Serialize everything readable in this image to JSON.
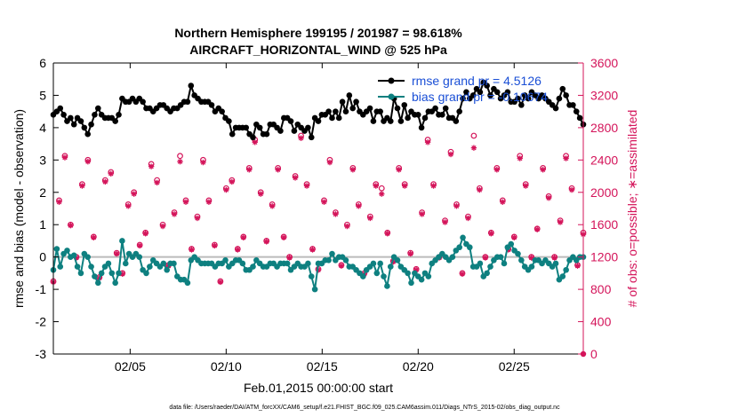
{
  "chart_data": {
    "type": "line",
    "title": "Northern Hemisphere 199195 / 201987 = 98.618%",
    "subtitle": "AIRCRAFT_HORIZONTAL_WIND @ 525 hPa",
    "xlabel": "Feb.01,2015 00:00:00 start",
    "ylabel_left": "rmse and bias (model - observation)",
    "ylabel_right": "# of obs: o=possible; ∗=assimilated",
    "footnote": "data file: /Users/raeder/DAI/ATM_forcXX/CAM6_setup/f.e21.FHIST_BGC.f09_025.CAM6assim.011/Diags_NTrS_2015-02/obs_diag_output.nc",
    "x_ticks": [
      {
        "day": 5,
        "label": "02/05"
      },
      {
        "day": 10,
        "label": "02/10"
      },
      {
        "day": 15,
        "label": "02/15"
      },
      {
        "day": 20,
        "label": "02/20"
      },
      {
        "day": 25,
        "label": "02/25"
      }
    ],
    "xlim": [
      1,
      28.6
    ],
    "ylim_left": [
      -3,
      6
    ],
    "yticks_left": [
      -3,
      -2,
      -1,
      0,
      1,
      2,
      3,
      4,
      5,
      6
    ],
    "ylim_right": [
      0,
      3600
    ],
    "yticks_right": [
      0,
      400,
      800,
      1200,
      1600,
      2000,
      2400,
      2800,
      3200,
      3600
    ],
    "legend": {
      "placement": "top-right",
      "entries": [
        "rmse grand pr = 4.5126",
        "bias grand pr = -0.10674"
      ]
    },
    "colors": {
      "rmse": "#000000",
      "bias": "#0e8080",
      "obs": "#d4145a",
      "zero": "#bbbbbb",
      "axis_right": "#d4145a",
      "legend_text": "#1a4fd6"
    },
    "rmse": [
      4.4,
      4.5,
      4.6,
      4.4,
      4.2,
      4.3,
      4.1,
      4.3,
      4.2,
      4.0,
      3.8,
      4.1,
      4.4,
      4.6,
      4.4,
      4.3,
      4.3,
      4.3,
      4.2,
      4.4,
      4.9,
      4.8,
      4.8,
      4.9,
      4.8,
      4.9,
      4.8,
      4.6,
      4.6,
      4.5,
      4.6,
      4.7,
      4.7,
      4.6,
      4.5,
      4.6,
      4.6,
      4.7,
      4.8,
      4.8,
      5.3,
      5.0,
      4.9,
      4.8,
      4.8,
      4.8,
      4.7,
      4.5,
      4.6,
      4.5,
      4.3,
      4.2,
      3.8,
      4.0,
      4.0,
      4.0,
      4.0,
      3.8,
      3.7,
      4.1,
      4.0,
      3.8,
      3.8,
      4.1,
      4.1,
      4.0,
      3.9,
      4.3,
      4.3,
      4.2,
      3.9,
      4.1,
      4.0,
      3.9,
      4.0,
      3.7,
      4.3,
      4.2,
      4.4,
      4.4,
      4.5,
      4.3,
      4.5,
      4.3,
      4.8,
      4.5,
      5.0,
      4.6,
      4.8,
      4.5,
      4.4,
      4.5,
      4.6,
      4.2,
      4.5,
      4.5,
      4.2,
      4.3,
      4.2,
      4.9,
      4.6,
      4.2,
      4.7,
      4.3,
      4.5,
      4.4,
      4.4,
      4.0,
      4.3,
      4.5,
      4.5,
      4.6,
      4.4,
      4.4,
      4.6,
      4.3,
      4.3,
      4.2,
      4.5,
      4.9,
      5.1,
      4.9,
      5.0,
      5.2,
      5.1,
      5.4,
      5.3,
      5.0,
      5.2,
      5.1,
      4.9,
      5.0,
      5.1,
      4.8,
      4.8,
      4.9,
      4.7,
      5.0,
      4.9,
      5.1,
      5.0,
      4.9,
      5.0,
      4.9,
      4.8,
      4.7,
      4.6,
      4.9,
      5.2,
      5.0,
      4.7,
      4.7,
      4.5,
      4.3,
      4.1
    ],
    "bias": [
      -0.4,
      0.25,
      -0.3,
      0.1,
      0.2,
      0.0,
      0.05,
      -0.3,
      -0.5,
      0.1,
      0.0,
      -0.3,
      -0.6,
      -0.8,
      -0.5,
      -0.3,
      -0.2,
      -0.5,
      -0.8,
      -0.5,
      0.5,
      -0.2,
      0.1,
      0.0,
      0.1,
      0.0,
      -0.4,
      -0.5,
      -0.3,
      -0.1,
      -0.2,
      -0.3,
      -0.2,
      -0.4,
      -0.2,
      -0.2,
      -0.6,
      -0.7,
      -0.7,
      -0.8,
      -0.1,
      0.0,
      -0.1,
      -0.2,
      -0.2,
      -0.2,
      -0.2,
      -0.3,
      -0.2,
      -0.2,
      -0.1,
      -0.3,
      -0.2,
      -0.1,
      -0.1,
      -0.2,
      -0.4,
      -0.4,
      -0.3,
      -0.1,
      -0.2,
      -0.3,
      -0.3,
      -0.2,
      -0.2,
      -0.3,
      -0.2,
      -0.2,
      -0.2,
      -0.4,
      -0.3,
      -0.2,
      -0.3,
      -0.3,
      -0.2,
      -0.6,
      -1.0,
      -0.2,
      -0.2,
      -0.1,
      -0.1,
      0.1,
      -0.1,
      0.0,
      0.0,
      -0.1,
      -0.3,
      -0.3,
      -0.4,
      -0.5,
      -0.6,
      -0.4,
      -0.3,
      -0.2,
      -0.5,
      -0.2,
      -0.6,
      -0.9,
      -0.3,
      0.0,
      -0.1,
      -0.3,
      -0.4,
      -0.5,
      -0.8,
      -0.5,
      -0.6,
      -0.7,
      -0.5,
      -0.6,
      -0.2,
      -0.1,
      0.0,
      0.1,
      0.0,
      -0.1,
      0.0,
      0.2,
      0.3,
      0.6,
      0.4,
      0.3,
      -0.3,
      -0.3,
      -0.2,
      -0.6,
      -0.5,
      -0.3,
      -0.1,
      0.0,
      0.0,
      -0.2,
      0.3,
      0.4,
      0.2,
      0.1,
      -0.1,
      -0.3,
      -0.4,
      -0.3,
      -0.1,
      -0.1,
      -0.2,
      -0.1,
      -0.2,
      -0.3,
      -0.2,
      -0.7,
      -0.6,
      -0.4,
      -0.1,
      0.0,
      -0.1,
      0.0,
      0.0
    ],
    "obs_possible": [
      {
        "day": 1.0,
        "n": 900
      },
      {
        "day": 1.3,
        "n": 1900
      },
      {
        "day": 1.6,
        "n": 2450
      },
      {
        "day": 1.9,
        "n": 1600
      },
      {
        "day": 2.2,
        "n": 1200
      },
      {
        "day": 2.5,
        "n": 2100
      },
      {
        "day": 2.8,
        "n": 2400
      },
      {
        "day": 3.1,
        "n": 1450
      },
      {
        "day": 3.4,
        "n": 950
      },
      {
        "day": 3.7,
        "n": 2150
      },
      {
        "day": 4.0,
        "n": 2250
      },
      {
        "day": 4.3,
        "n": 1250
      },
      {
        "day": 4.6,
        "n": 1000
      },
      {
        "day": 4.9,
        "n": 1850
      },
      {
        "day": 5.2,
        "n": 2000
      },
      {
        "day": 5.5,
        "n": 1350
      },
      {
        "day": 5.8,
        "n": 1500
      },
      {
        "day": 6.1,
        "n": 2350
      },
      {
        "day": 6.4,
        "n": 2150
      },
      {
        "day": 6.7,
        "n": 1600
      },
      {
        "day": 7.0,
        "n": 1100
      },
      {
        "day": 7.3,
        "n": 1750
      },
      {
        "day": 7.6,
        "n": 2450
      },
      {
        "day": 7.9,
        "n": 1900
      },
      {
        "day": 8.2,
        "n": 1300
      },
      {
        "day": 8.5,
        "n": 1700
      },
      {
        "day": 8.8,
        "n": 2400
      },
      {
        "day": 9.1,
        "n": 1900
      },
      {
        "day": 9.4,
        "n": 1350
      },
      {
        "day": 9.7,
        "n": 900
      },
      {
        "day": 10.0,
        "n": 2050
      },
      {
        "day": 10.3,
        "n": 2150
      },
      {
        "day": 10.6,
        "n": 1300
      },
      {
        "day": 10.9,
        "n": 1450
      },
      {
        "day": 11.2,
        "n": 2300
      },
      {
        "day": 11.5,
        "n": 2650
      },
      {
        "day": 11.8,
        "n": 2000
      },
      {
        "day": 12.1,
        "n": 1400
      },
      {
        "day": 12.4,
        "n": 1850
      },
      {
        "day": 12.7,
        "n": 2300
      },
      {
        "day": 13.0,
        "n": 1450
      },
      {
        "day": 13.3,
        "n": 1200
      },
      {
        "day": 13.6,
        "n": 2200
      },
      {
        "day": 13.9,
        "n": 2700
      },
      {
        "day": 14.2,
        "n": 2100
      },
      {
        "day": 14.5,
        "n": 1300
      },
      {
        "day": 14.8,
        "n": 1050
      },
      {
        "day": 15.1,
        "n": 1900
      },
      {
        "day": 15.4,
        "n": 2400
      },
      {
        "day": 15.7,
        "n": 1750
      },
      {
        "day": 16.0,
        "n": 1100
      },
      {
        "day": 16.3,
        "n": 1600
      },
      {
        "day": 16.6,
        "n": 2300
      },
      {
        "day": 16.9,
        "n": 1850
      },
      {
        "day": 17.2,
        "n": 1000
      },
      {
        "day": 17.5,
        "n": 1700
      },
      {
        "day": 17.8,
        "n": 2100
      },
      {
        "day": 18.1,
        "n": 2050
      },
      {
        "day": 18.4,
        "n": 1500
      },
      {
        "day": 18.7,
        "n": 1150
      },
      {
        "day": 19.0,
        "n": 2300
      },
      {
        "day": 19.3,
        "n": 2100
      },
      {
        "day": 19.6,
        "n": 1250
      },
      {
        "day": 19.9,
        "n": 1050
      },
      {
        "day": 20.2,
        "n": 1750
      },
      {
        "day": 20.5,
        "n": 2650
      },
      {
        "day": 20.8,
        "n": 2100
      },
      {
        "day": 21.1,
        "n": 1200
      },
      {
        "day": 21.4,
        "n": 1650
      },
      {
        "day": 21.7,
        "n": 2500
      },
      {
        "day": 22.0,
        "n": 1850
      },
      {
        "day": 22.3,
        "n": 1000
      },
      {
        "day": 22.6,
        "n": 1700
      },
      {
        "day": 22.9,
        "n": 2700
      },
      {
        "day": 23.2,
        "n": 2050
      },
      {
        "day": 23.5,
        "n": 1200
      },
      {
        "day": 23.8,
        "n": 1500
      },
      {
        "day": 24.1,
        "n": 2300
      },
      {
        "day": 24.4,
        "n": 1900
      },
      {
        "day": 24.7,
        "n": 1300
      },
      {
        "day": 25.0,
        "n": 1450
      },
      {
        "day": 25.3,
        "n": 2450
      },
      {
        "day": 25.6,
        "n": 2100
      },
      {
        "day": 25.9,
        "n": 1200
      },
      {
        "day": 26.2,
        "n": 1550
      },
      {
        "day": 26.5,
        "n": 2300
      },
      {
        "day": 26.8,
        "n": 1950
      },
      {
        "day": 27.1,
        "n": 1200
      },
      {
        "day": 27.4,
        "n": 1650
      },
      {
        "day": 27.7,
        "n": 2450
      },
      {
        "day": 28.0,
        "n": 2050
      },
      {
        "day": 28.3,
        "n": 1100
      },
      {
        "day": 28.6,
        "n": 1500
      }
    ],
    "obs_assimilated": [
      {
        "day": 1.0,
        "n": 890
      },
      {
        "day": 1.3,
        "n": 1880
      },
      {
        "day": 1.6,
        "n": 2430
      },
      {
        "day": 1.9,
        "n": 1590
      },
      {
        "day": 2.2,
        "n": 1190
      },
      {
        "day": 2.5,
        "n": 2080
      },
      {
        "day": 2.8,
        "n": 2380
      },
      {
        "day": 3.1,
        "n": 1440
      },
      {
        "day": 3.4,
        "n": 940
      },
      {
        "day": 3.7,
        "n": 2130
      },
      {
        "day": 4.0,
        "n": 2230
      },
      {
        "day": 4.3,
        "n": 1240
      },
      {
        "day": 4.6,
        "n": 990
      },
      {
        "day": 4.9,
        "n": 1830
      },
      {
        "day": 5.2,
        "n": 1980
      },
      {
        "day": 5.5,
        "n": 1340
      },
      {
        "day": 5.8,
        "n": 1490
      },
      {
        "day": 6.1,
        "n": 2320
      },
      {
        "day": 6.4,
        "n": 2120
      },
      {
        "day": 6.7,
        "n": 1580
      },
      {
        "day": 7.0,
        "n": 1090
      },
      {
        "day": 7.3,
        "n": 1730
      },
      {
        "day": 7.6,
        "n": 2380
      },
      {
        "day": 7.9,
        "n": 1880
      },
      {
        "day": 8.2,
        "n": 1290
      },
      {
        "day": 8.5,
        "n": 1680
      },
      {
        "day": 8.8,
        "n": 2370
      },
      {
        "day": 9.1,
        "n": 1880
      },
      {
        "day": 9.4,
        "n": 1340
      },
      {
        "day": 9.7,
        "n": 890
      },
      {
        "day": 10.0,
        "n": 2030
      },
      {
        "day": 10.3,
        "n": 2130
      },
      {
        "day": 10.6,
        "n": 1290
      },
      {
        "day": 10.9,
        "n": 1440
      },
      {
        "day": 11.2,
        "n": 2280
      },
      {
        "day": 11.5,
        "n": 2620
      },
      {
        "day": 11.8,
        "n": 1980
      },
      {
        "day": 12.1,
        "n": 1390
      },
      {
        "day": 12.4,
        "n": 1830
      },
      {
        "day": 12.7,
        "n": 2280
      },
      {
        "day": 13.0,
        "n": 1440
      },
      {
        "day": 13.3,
        "n": 1190
      },
      {
        "day": 13.6,
        "n": 2180
      },
      {
        "day": 13.9,
        "n": 2670
      },
      {
        "day": 14.2,
        "n": 2080
      },
      {
        "day": 14.5,
        "n": 1290
      },
      {
        "day": 14.8,
        "n": 1040
      },
      {
        "day": 15.1,
        "n": 1880
      },
      {
        "day": 15.4,
        "n": 2370
      },
      {
        "day": 15.7,
        "n": 1730
      },
      {
        "day": 16.0,
        "n": 1090
      },
      {
        "day": 16.3,
        "n": 1580
      },
      {
        "day": 16.6,
        "n": 2280
      },
      {
        "day": 16.9,
        "n": 1830
      },
      {
        "day": 17.2,
        "n": 990
      },
      {
        "day": 17.5,
        "n": 1680
      },
      {
        "day": 17.8,
        "n": 2080
      },
      {
        "day": 18.1,
        "n": 1980
      },
      {
        "day": 18.4,
        "n": 1490
      },
      {
        "day": 18.7,
        "n": 1140
      },
      {
        "day": 19.0,
        "n": 2280
      },
      {
        "day": 19.3,
        "n": 2080
      },
      {
        "day": 19.6,
        "n": 1240
      },
      {
        "day": 19.9,
        "n": 1040
      },
      {
        "day": 20.2,
        "n": 1730
      },
      {
        "day": 20.5,
        "n": 2620
      },
      {
        "day": 20.8,
        "n": 2080
      },
      {
        "day": 21.1,
        "n": 1190
      },
      {
        "day": 21.4,
        "n": 1630
      },
      {
        "day": 21.7,
        "n": 2470
      },
      {
        "day": 22.0,
        "n": 1830
      },
      {
        "day": 22.3,
        "n": 990
      },
      {
        "day": 22.6,
        "n": 1680
      },
      {
        "day": 22.9,
        "n": 2550
      },
      {
        "day": 23.2,
        "n": 2030
      },
      {
        "day": 23.5,
        "n": 1190
      },
      {
        "day": 23.8,
        "n": 1490
      },
      {
        "day": 24.1,
        "n": 2280
      },
      {
        "day": 24.4,
        "n": 1880
      },
      {
        "day": 24.7,
        "n": 1290
      },
      {
        "day": 25.0,
        "n": 1440
      },
      {
        "day": 25.3,
        "n": 2420
      },
      {
        "day": 25.6,
        "n": 2080
      },
      {
        "day": 25.9,
        "n": 1190
      },
      {
        "day": 26.2,
        "n": 1540
      },
      {
        "day": 26.5,
        "n": 2280
      },
      {
        "day": 26.8,
        "n": 1930
      },
      {
        "day": 27.1,
        "n": 1190
      },
      {
        "day": 27.4,
        "n": 1630
      },
      {
        "day": 27.7,
        "n": 2420
      },
      {
        "day": 28.0,
        "n": 2030
      },
      {
        "day": 28.3,
        "n": 1090
      },
      {
        "day": 28.6,
        "n": 1480
      }
    ]
  }
}
